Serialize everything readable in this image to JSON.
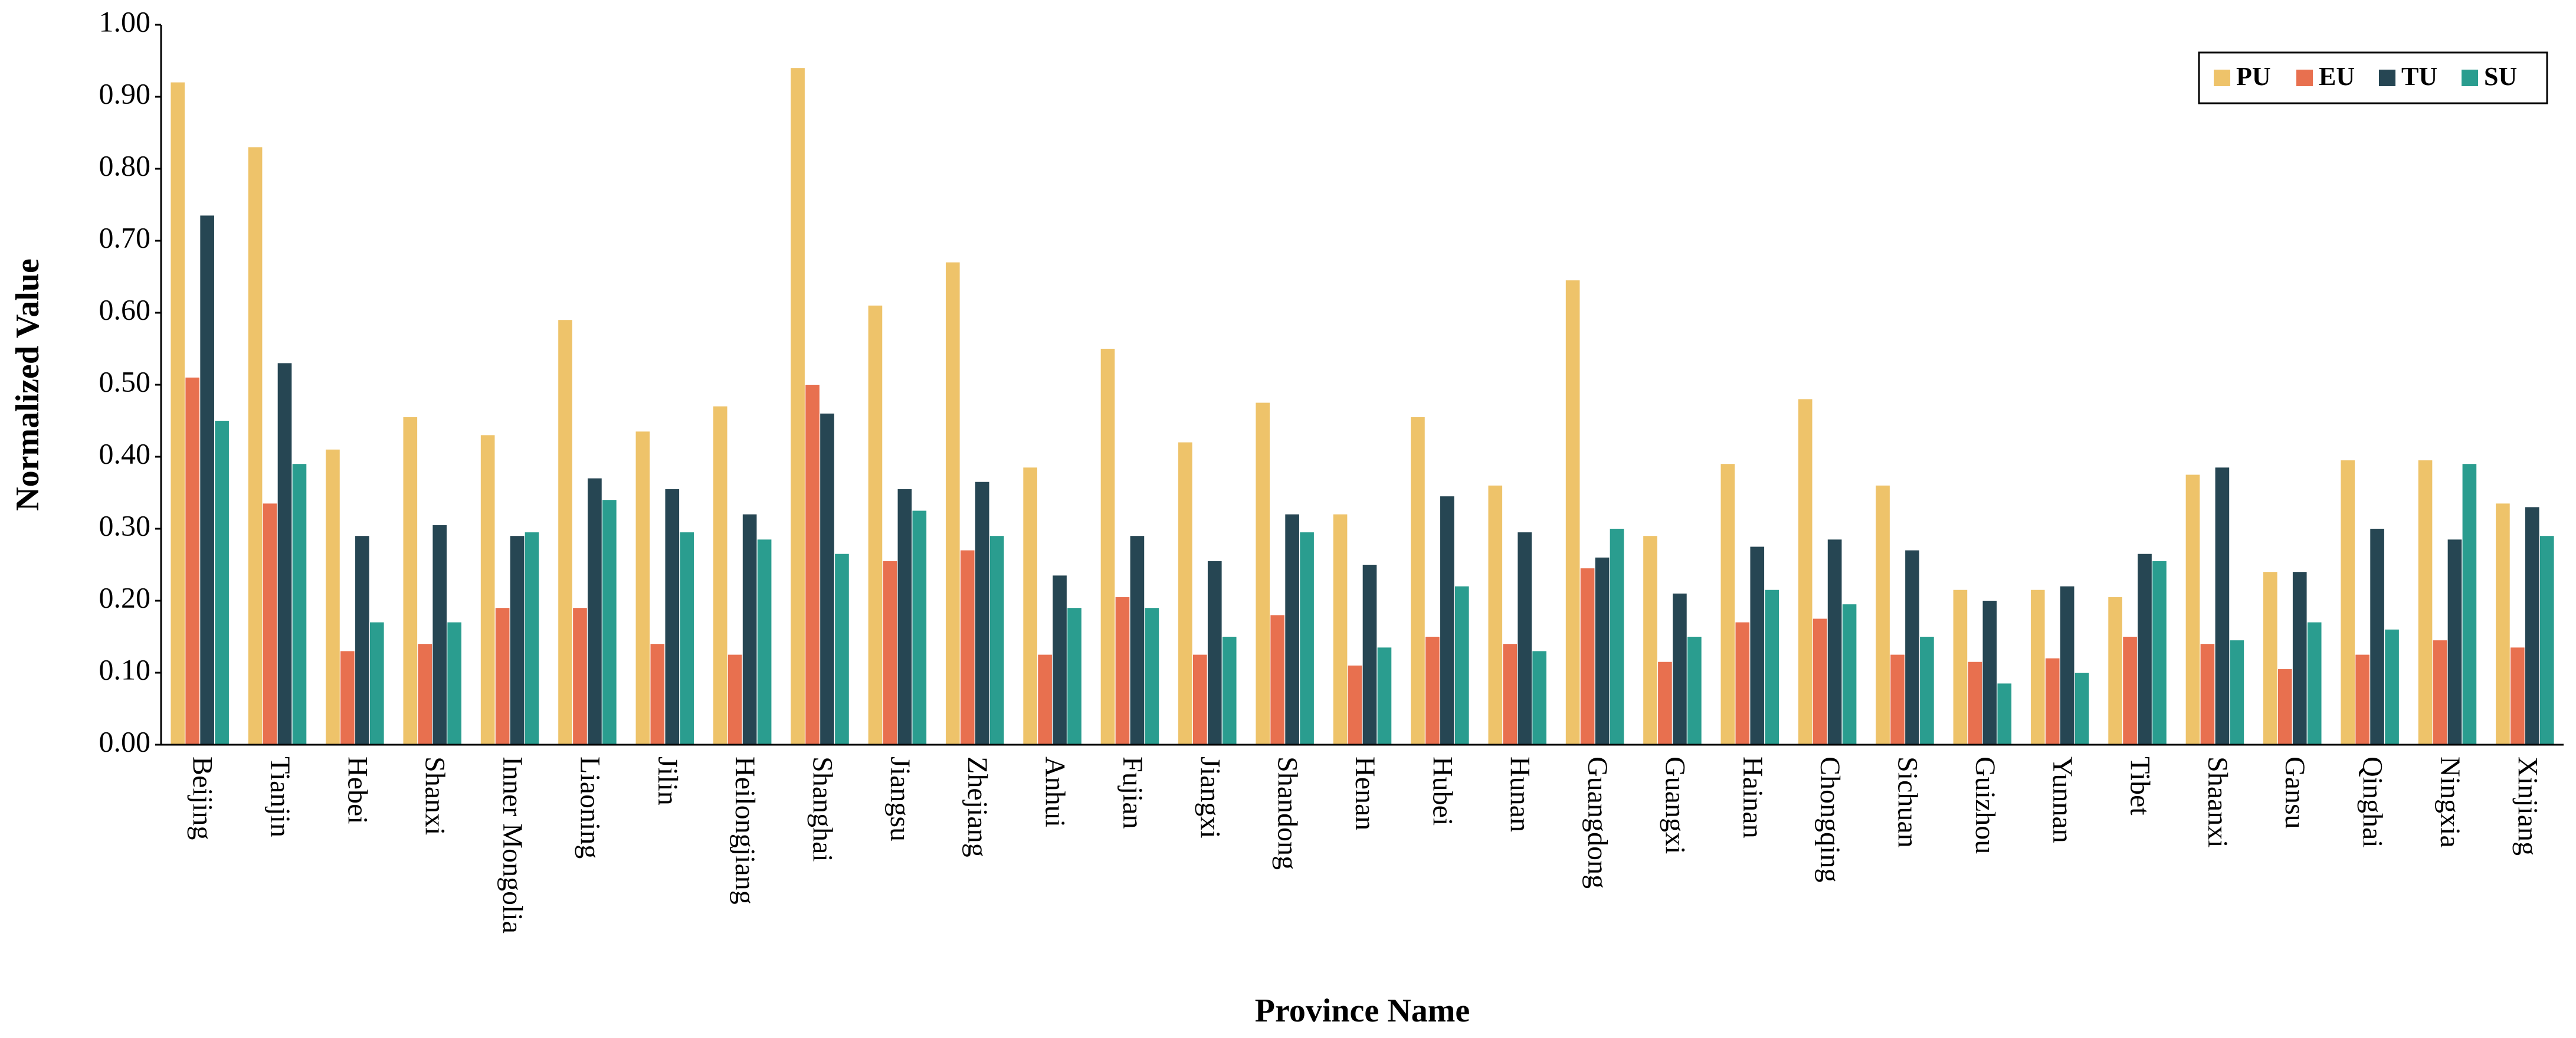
{
  "chart_data": {
    "type": "bar",
    "x_label": "Province Name",
    "y_label": "Normalized Value",
    "categories": [
      "Beijing",
      "Tianjin",
      "Hebei",
      "Shanxi",
      "Inner Mongolia",
      "Liaoning",
      "Jilin",
      "Heilongjiang",
      "Shanghai",
      "Jiangsu",
      "Zhejiang",
      "Anhui",
      "Fujian",
      "Jiangxi",
      "Shandong",
      "Henan",
      "Hubei",
      "Hunan",
      "Guangdong",
      "Guangxi",
      "Hainan",
      "Chongqing",
      "Sichuan",
      "Guizhou",
      "Yunnan",
      "Tibet",
      "Shaanxi",
      "Gansu",
      "Qinghai",
      "Ningxia",
      "Xinjiang"
    ],
    "series": [
      {
        "name": "PU",
        "color": "#EEC36A",
        "values": [
          0.92,
          0.83,
          0.41,
          0.455,
          0.43,
          0.59,
          0.435,
          0.47,
          0.94,
          0.61,
          0.67,
          0.385,
          0.55,
          0.42,
          0.475,
          0.32,
          0.455,
          0.36,
          0.645,
          0.29,
          0.39,
          0.48,
          0.36,
          0.215,
          0.215,
          0.205,
          0.375,
          0.24,
          0.395,
          0.395,
          0.335
        ]
      },
      {
        "name": "EU",
        "color": "#E8704F",
        "values": [
          0.51,
          0.335,
          0.13,
          0.14,
          0.19,
          0.19,
          0.14,
          0.125,
          0.5,
          0.255,
          0.27,
          0.125,
          0.205,
          0.125,
          0.18,
          0.11,
          0.15,
          0.14,
          0.245,
          0.115,
          0.17,
          0.175,
          0.125,
          0.115,
          0.12,
          0.15,
          0.14,
          0.105,
          0.125,
          0.145,
          0.135
        ]
      },
      {
        "name": "TU",
        "color": "#264653",
        "values": [
          0.735,
          0.53,
          0.29,
          0.305,
          0.29,
          0.37,
          0.355,
          0.32,
          0.46,
          0.355,
          0.365,
          0.235,
          0.29,
          0.255,
          0.32,
          0.25,
          0.345,
          0.295,
          0.26,
          0.21,
          0.275,
          0.285,
          0.27,
          0.2,
          0.22,
          0.265,
          0.385,
          0.24,
          0.3,
          0.285,
          0.33
        ]
      },
      {
        "name": "SU",
        "color": "#2A9D8F",
        "values": [
          0.45,
          0.39,
          0.17,
          0.17,
          0.295,
          0.34,
          0.295,
          0.285,
          0.265,
          0.325,
          0.29,
          0.19,
          0.19,
          0.15,
          0.295,
          0.135,
          0.22,
          0.13,
          0.3,
          0.15,
          0.215,
          0.195,
          0.15,
          0.085,
          0.1,
          0.255,
          0.145,
          0.17,
          0.16,
          0.39,
          0.29
        ]
      }
    ],
    "ylim": [
      0,
      1
    ],
    "yticks": [
      {
        "value": 0,
        "label": "0.00"
      },
      {
        "value": 0.1,
        "label": "0.10"
      },
      {
        "value": 0.2,
        "label": "0.20"
      },
      {
        "value": 0.3,
        "label": "0.30"
      },
      {
        "value": 0.4,
        "label": "0.40"
      },
      {
        "value": 0.5,
        "label": "0.50"
      },
      {
        "value": 0.6,
        "label": "0.60"
      },
      {
        "value": 0.7,
        "label": "0.70"
      },
      {
        "value": 0.8,
        "label": "0.80"
      },
      {
        "value": 0.9,
        "label": "0.90"
      },
      {
        "value": 1,
        "label": "1.00"
      }
    ],
    "legend": "upper right"
  }
}
